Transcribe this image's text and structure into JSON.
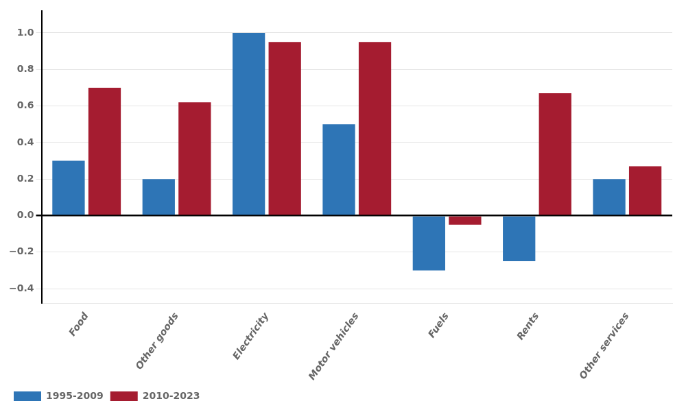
{
  "chart_data": {
    "type": "bar",
    "categories": [
      "Food",
      "Other goods",
      "Electricity",
      "Motor vehicles",
      "Fuels",
      "Rents",
      "Other services"
    ],
    "series": [
      {
        "name": "1995-2009",
        "color": "#2E75B6",
        "values": [
          0.3,
          0.2,
          1.0,
          0.5,
          -0.3,
          -0.25,
          0.2
        ]
      },
      {
        "name": "2010-2023",
        "color": "#A51C30",
        "values": [
          0.7,
          0.62,
          0.95,
          0.95,
          -0.05,
          0.67,
          0.27
        ]
      }
    ],
    "ylim": [
      -0.48,
      1.12
    ],
    "yticks": [
      {
        "value": -0.4,
        "label": "−0.4"
      },
      {
        "value": -0.2,
        "label": "−0.2"
      },
      {
        "value": 0,
        "label": "0.0"
      },
      0.2,
      0.4,
      0.6,
      0.8,
      {
        "value": 1,
        "label": "1.0"
      }
    ],
    "grid": true,
    "legend": "lower left"
  }
}
